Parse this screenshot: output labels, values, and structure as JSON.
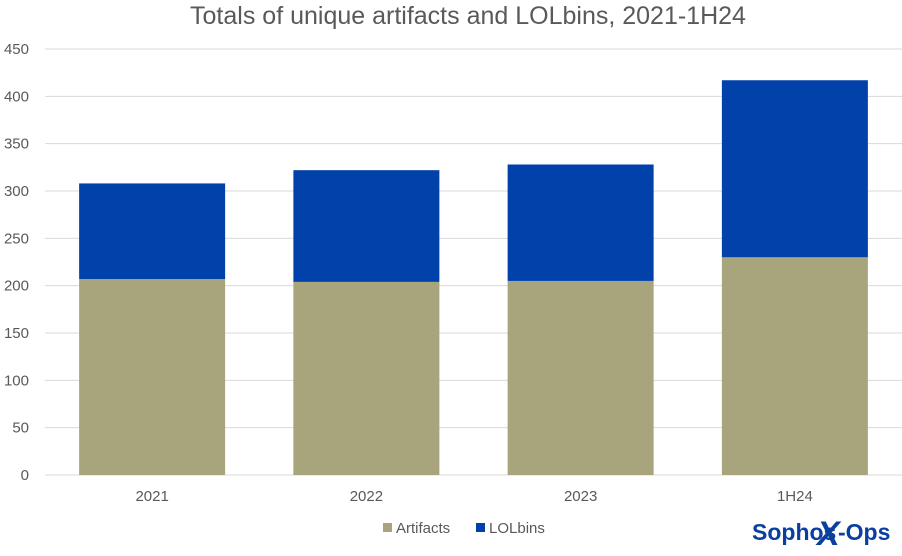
{
  "colors": {
    "artifacts": "#a8a47b",
    "lolbins": "#0041aa",
    "text": "#595959",
    "grid": "#d9d9d9",
    "logo": "#0a3fa0"
  },
  "chart_data": {
    "type": "bar",
    "stacked": true,
    "title": "Totals of unique artifacts and LOLbins, 2021-1H24",
    "categories": [
      "2021",
      "2022",
      "2023",
      "1H24"
    ],
    "series": [
      {
        "name": "Artifacts",
        "values": [
          207,
          204,
          205,
          230
        ]
      },
      {
        "name": "LOLbins",
        "values": [
          101,
          118,
          123,
          187
        ]
      }
    ],
    "ylim": [
      0,
      450
    ],
    "yticks": [
      "0",
      "50",
      "100",
      "150",
      "200",
      "250",
      "300",
      "350",
      "400",
      "450"
    ],
    "grid": true,
    "legend_position": "bottom"
  },
  "logo": {
    "part1": "Sophos",
    "part2": "X",
    "part3": "-Ops"
  }
}
